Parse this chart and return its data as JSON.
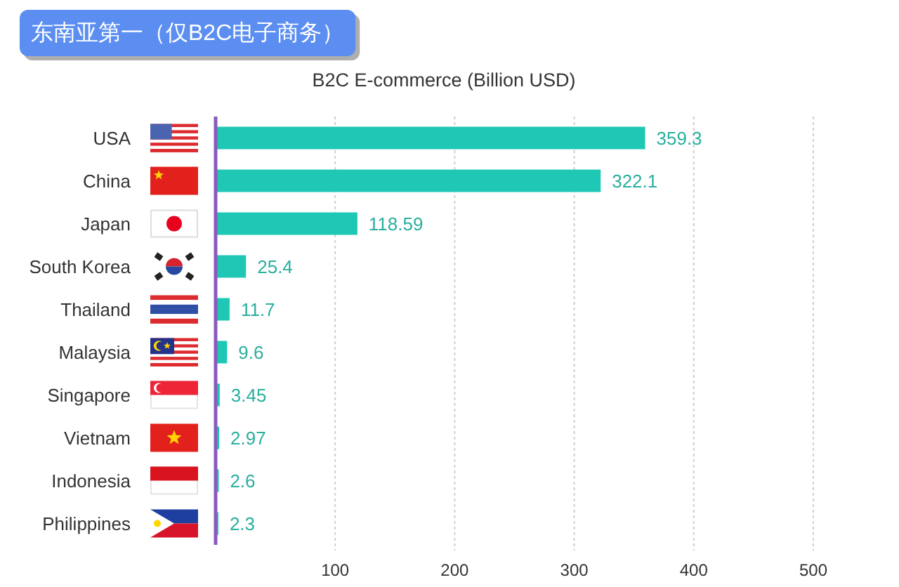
{
  "chart_data": {
    "type": "bar",
    "orientation": "horizontal",
    "title": "东南亚第一（仅B2C电子商务）",
    "subtitle": "B2C E-commerce (Billion USD)",
    "categories": [
      "USA",
      "China",
      "Japan",
      "South Korea",
      "Thailand",
      "Malaysia",
      "Singapore",
      "Vietnam",
      "Indonesia",
      "Philippines"
    ],
    "values": [
      359.3,
      322.1,
      118.59,
      25.4,
      11.7,
      9.6,
      3.45,
      2.97,
      2.6,
      2.3
    ],
    "color": "#1ec8b4",
    "xlim": [
      0,
      500
    ],
    "xticks": [
      100,
      200,
      300,
      400,
      500
    ],
    "grid": "x",
    "data_labels": true
  }
}
